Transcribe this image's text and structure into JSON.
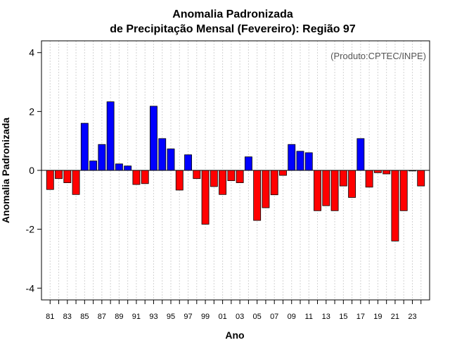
{
  "chart_data": {
    "type": "bar",
    "title": "Anomalia Padronizada",
    "subtitle": "de Precipitação Mensal (Fevereiro): Região 97",
    "xlabel": "Ano",
    "ylabel": "Anomalia Padronizada",
    "credit": "(Produto:CPTEC/INPE)",
    "ylim": [
      -4.4,
      4.4
    ],
    "yticks": [
      -4,
      -2,
      0,
      2,
      4
    ],
    "grid": true,
    "categories": [
      "81",
      "82",
      "83",
      "84",
      "85",
      "86",
      "87",
      "88",
      "89",
      "90",
      "91",
      "92",
      "93",
      "94",
      "95",
      "96",
      "97",
      "98",
      "99",
      "00",
      "01",
      "02",
      "03",
      "04",
      "05",
      "06",
      "07",
      "08",
      "09",
      "10",
      "11",
      "12",
      "13",
      "14",
      "15",
      "16",
      "17",
      "18",
      "19",
      "20",
      "21",
      "22",
      "23",
      "24"
    ],
    "xtick_labels": [
      "81",
      "83",
      "85",
      "87",
      "89",
      "91",
      "93",
      "95",
      "97",
      "99",
      "01",
      "03",
      "05",
      "07",
      "09",
      "11",
      "13",
      "15",
      "17",
      "19",
      "21",
      "23"
    ],
    "values": [
      -0.65,
      -0.28,
      -0.42,
      -0.82,
      1.6,
      0.32,
      0.88,
      2.33,
      0.22,
      0.15,
      -0.48,
      -0.45,
      2.18,
      1.08,
      0.73,
      -0.67,
      0.53,
      -0.28,
      -1.83,
      -0.55,
      -0.82,
      -0.35,
      -0.42,
      0.46,
      -1.7,
      -1.27,
      -0.83,
      -0.17,
      0.88,
      0.65,
      0.6,
      -1.37,
      -1.2,
      -1.37,
      -0.53,
      -0.92,
      1.08,
      -0.57,
      -0.08,
      -0.12,
      -2.4,
      -1.37,
      -0.02,
      -0.53
    ],
    "colors": {
      "positive": "#0000ff",
      "negative": "#ff0000"
    }
  }
}
